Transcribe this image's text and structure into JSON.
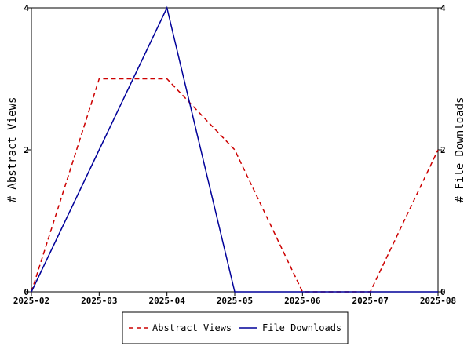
{
  "chart_data": {
    "type": "line",
    "x": [
      "2025-02",
      "2025-03",
      "2025-04",
      "2025-05",
      "2025-06",
      "2025-07",
      "2025-08"
    ],
    "series": [
      {
        "name": "Abstract Views",
        "axis": "left",
        "color": "#cc0000",
        "dash": "dashed",
        "values": [
          0,
          3,
          3,
          2,
          0,
          0,
          2
        ]
      },
      {
        "name": "File Downloads",
        "axis": "right",
        "color": "#000099",
        "dash": "solid",
        "values": [
          0,
          2,
          4,
          0,
          0,
          0,
          0
        ]
      }
    ],
    "ylabel": "# Abstract Views",
    "y2label": "# File Downloads",
    "ylim": [
      0,
      4
    ],
    "y2lim": [
      0,
      4
    ],
    "yticks": [
      0,
      2,
      4
    ],
    "y2ticks": [
      0,
      2,
      4
    ],
    "grid": false,
    "legend_position": "bottom"
  }
}
